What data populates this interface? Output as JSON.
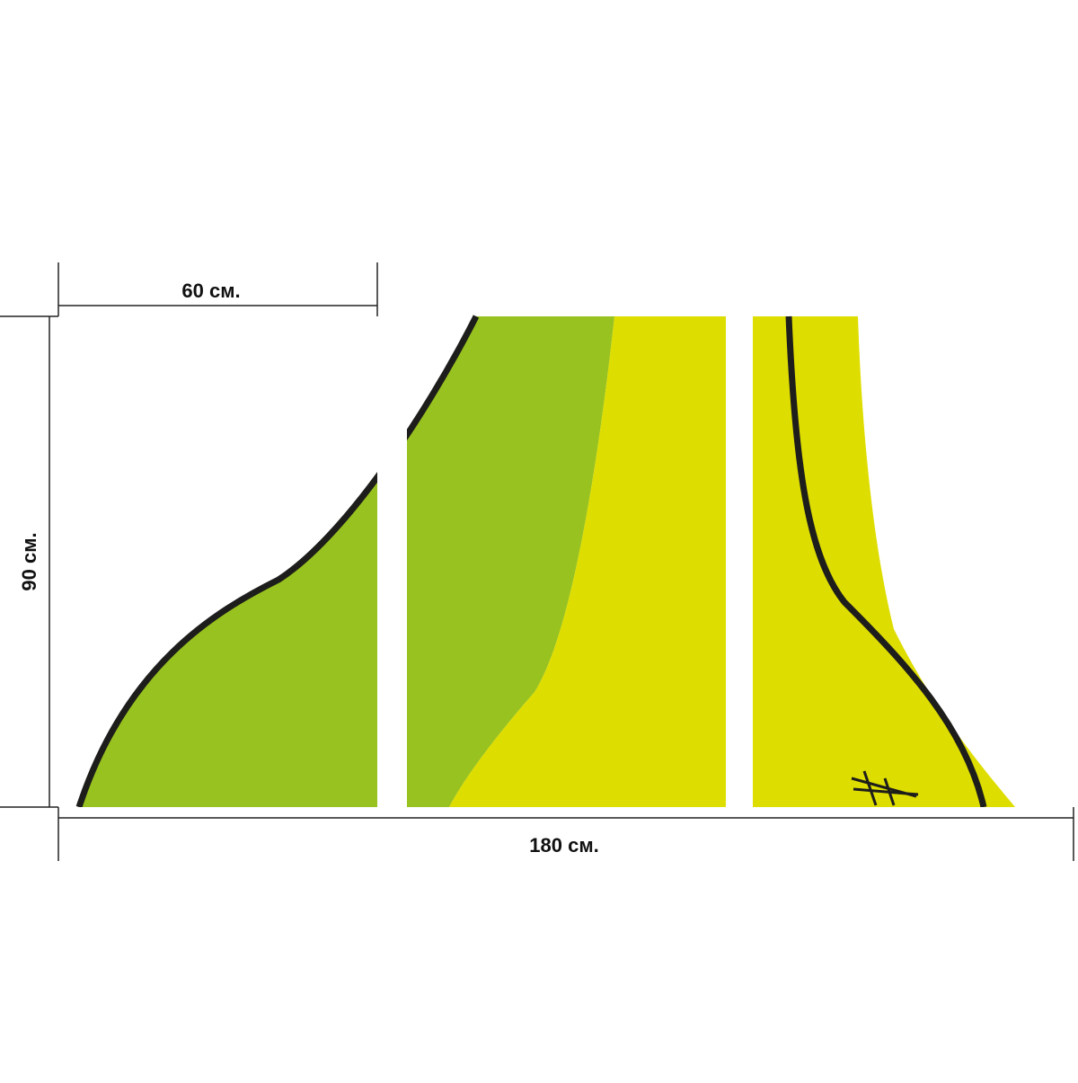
{
  "dimensions": {
    "panel_width": "60 см.",
    "height": "90 см.",
    "total_width": "180 см."
  }
}
